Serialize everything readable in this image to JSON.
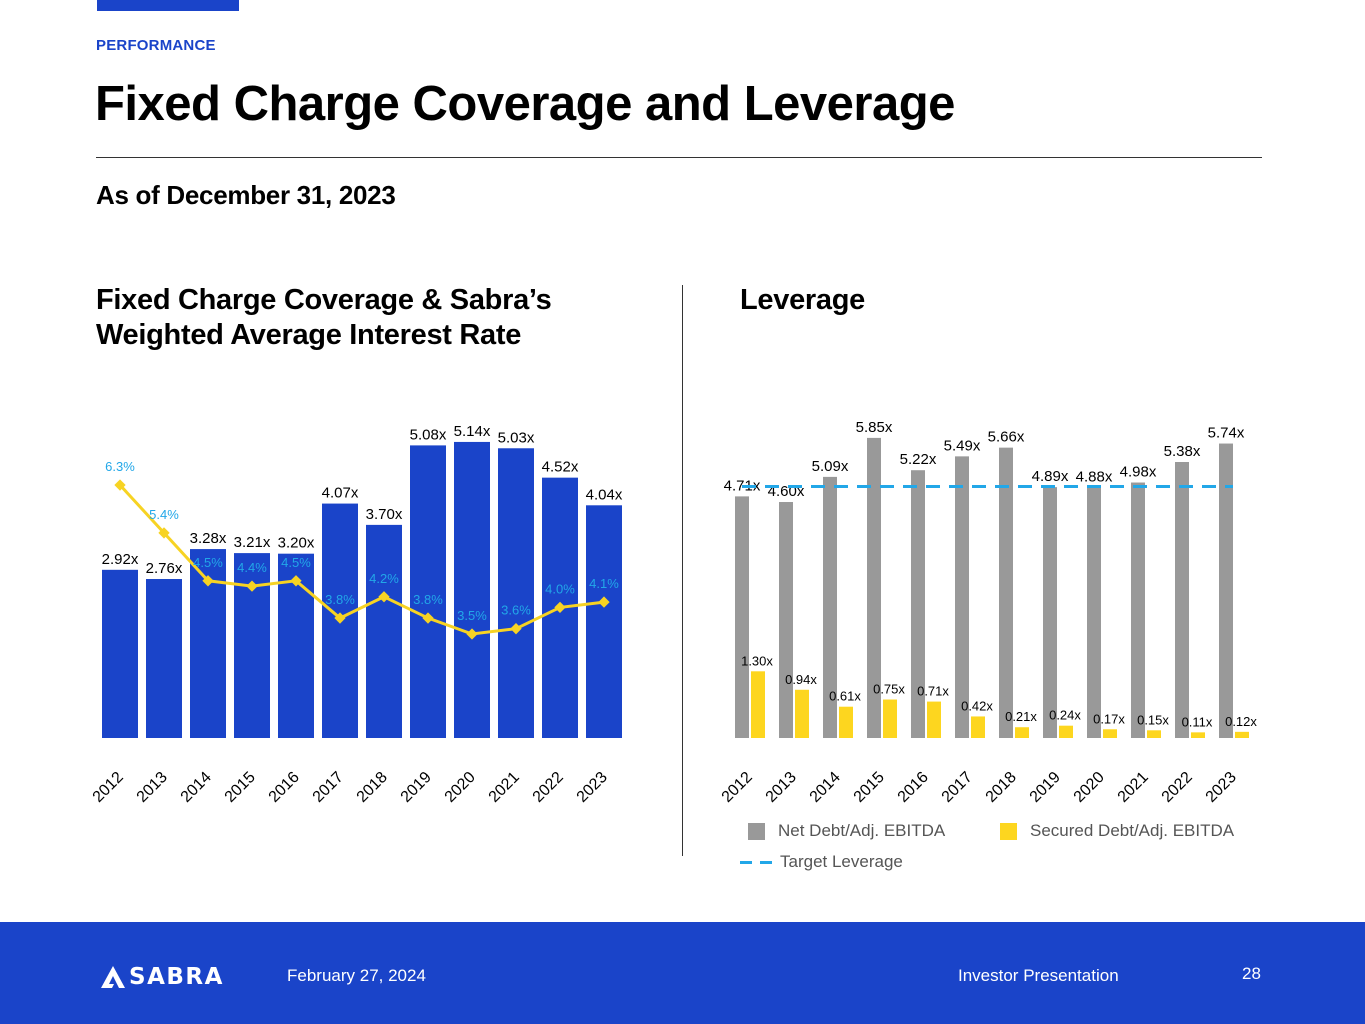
{
  "header": {
    "section_label": "PERFORMANCE",
    "title": "Fixed Charge Coverage and Leverage",
    "subtitle": "As of December 31, 2023"
  },
  "colors": {
    "brand_blue": "#1a44c9",
    "net_debt_grey": "#999999",
    "secured_yellow": "#fdd61f",
    "interest_line": "#f7d323",
    "interest_label": "#22a7e8",
    "target_line": "#22a7e8"
  },
  "chart_data": [
    {
      "type": "bar",
      "title": "Fixed Charge Coverage & Sabra’s Weighted Average Interest Rate",
      "title_lines": [
        "Fixed Charge Coverage & Sabra’s",
        "Weighted Average Interest Rate"
      ],
      "categories": [
        "2012",
        "2013",
        "2014",
        "2015",
        "2016",
        "2017",
        "2018",
        "2019",
        "2020",
        "2021",
        "2022",
        "2023"
      ],
      "series": [
        {
          "name": "Fixed Charge Coverage",
          "type": "bar",
          "values": [
            2.92,
            2.76,
            3.28,
            3.21,
            3.2,
            4.07,
            3.7,
            5.08,
            5.14,
            5.03,
            4.52,
            4.04
          ],
          "labels": [
            "2.92x",
            "2.76x",
            "3.28x",
            "3.21x",
            "3.20x",
            "4.07x",
            "3.70x",
            "5.08x",
            "5.14x",
            "5.03x",
            "4.52x",
            "4.04x"
          ]
        },
        {
          "name": "Weighted Average Interest Rate",
          "type": "line",
          "values": [
            6.3,
            5.4,
            4.5,
            4.4,
            4.5,
            3.8,
            4.2,
            3.8,
            3.5,
            3.6,
            4.0,
            4.1
          ],
          "labels": [
            "6.3%",
            "5.4%",
            "4.5%",
            "4.4%",
            "4.5%",
            "3.8%",
            "4.2%",
            "3.8%",
            "3.5%",
            "3.6%",
            "4.0%",
            "4.1%"
          ]
        }
      ],
      "xlabel": "",
      "ylabel": "",
      "grid": false,
      "legend": "none"
    },
    {
      "type": "bar",
      "title": "Leverage",
      "title_lines": [
        "Leverage"
      ],
      "categories": [
        "2012",
        "2013",
        "2014",
        "2015",
        "2016",
        "2017",
        "2018",
        "2019",
        "2020",
        "2021",
        "2022",
        "2023"
      ],
      "series": [
        {
          "name": "Net Debt/Adj. EBITDA",
          "values": [
            4.71,
            4.6,
            5.09,
            5.85,
            5.22,
            5.49,
            5.66,
            4.89,
            4.88,
            4.98,
            5.38,
            5.74
          ],
          "labels": [
            "4.71x",
            "4.60x",
            "5.09x",
            "5.85x",
            "5.22x",
            "5.49x",
            "5.66x",
            "4.89x",
            "4.88x",
            "4.98x",
            "5.38x",
            "5.74x"
          ]
        },
        {
          "name": "Secured Debt/Adj. EBITDA",
          "values": [
            1.3,
            0.94,
            0.61,
            0.75,
            0.71,
            0.42,
            0.21,
            0.24,
            0.17,
            0.15,
            0.11,
            0.12
          ],
          "labels": [
            "1.30x",
            "0.94x",
            "0.61x",
            "0.75x",
            "0.71x",
            "0.42x",
            "0.21x",
            "0.24x",
            "0.17x",
            "0.15x",
            "0.11x",
            "0.12x"
          ]
        }
      ],
      "reference_lines": [
        {
          "name": "Target Leverage",
          "value": 5.0,
          "style": "dashed"
        }
      ],
      "legend_entries": [
        "Net Debt/Adj. EBITDA",
        "Secured Debt/Adj. EBITDA",
        "Target Leverage"
      ],
      "xlabel": "",
      "ylabel": "",
      "grid": false,
      "legend": "bottom"
    }
  ],
  "footer": {
    "logo_text": "SABRA",
    "date": "February 27, 2024",
    "presentation": "Investor Presentation",
    "page_number": "28"
  }
}
